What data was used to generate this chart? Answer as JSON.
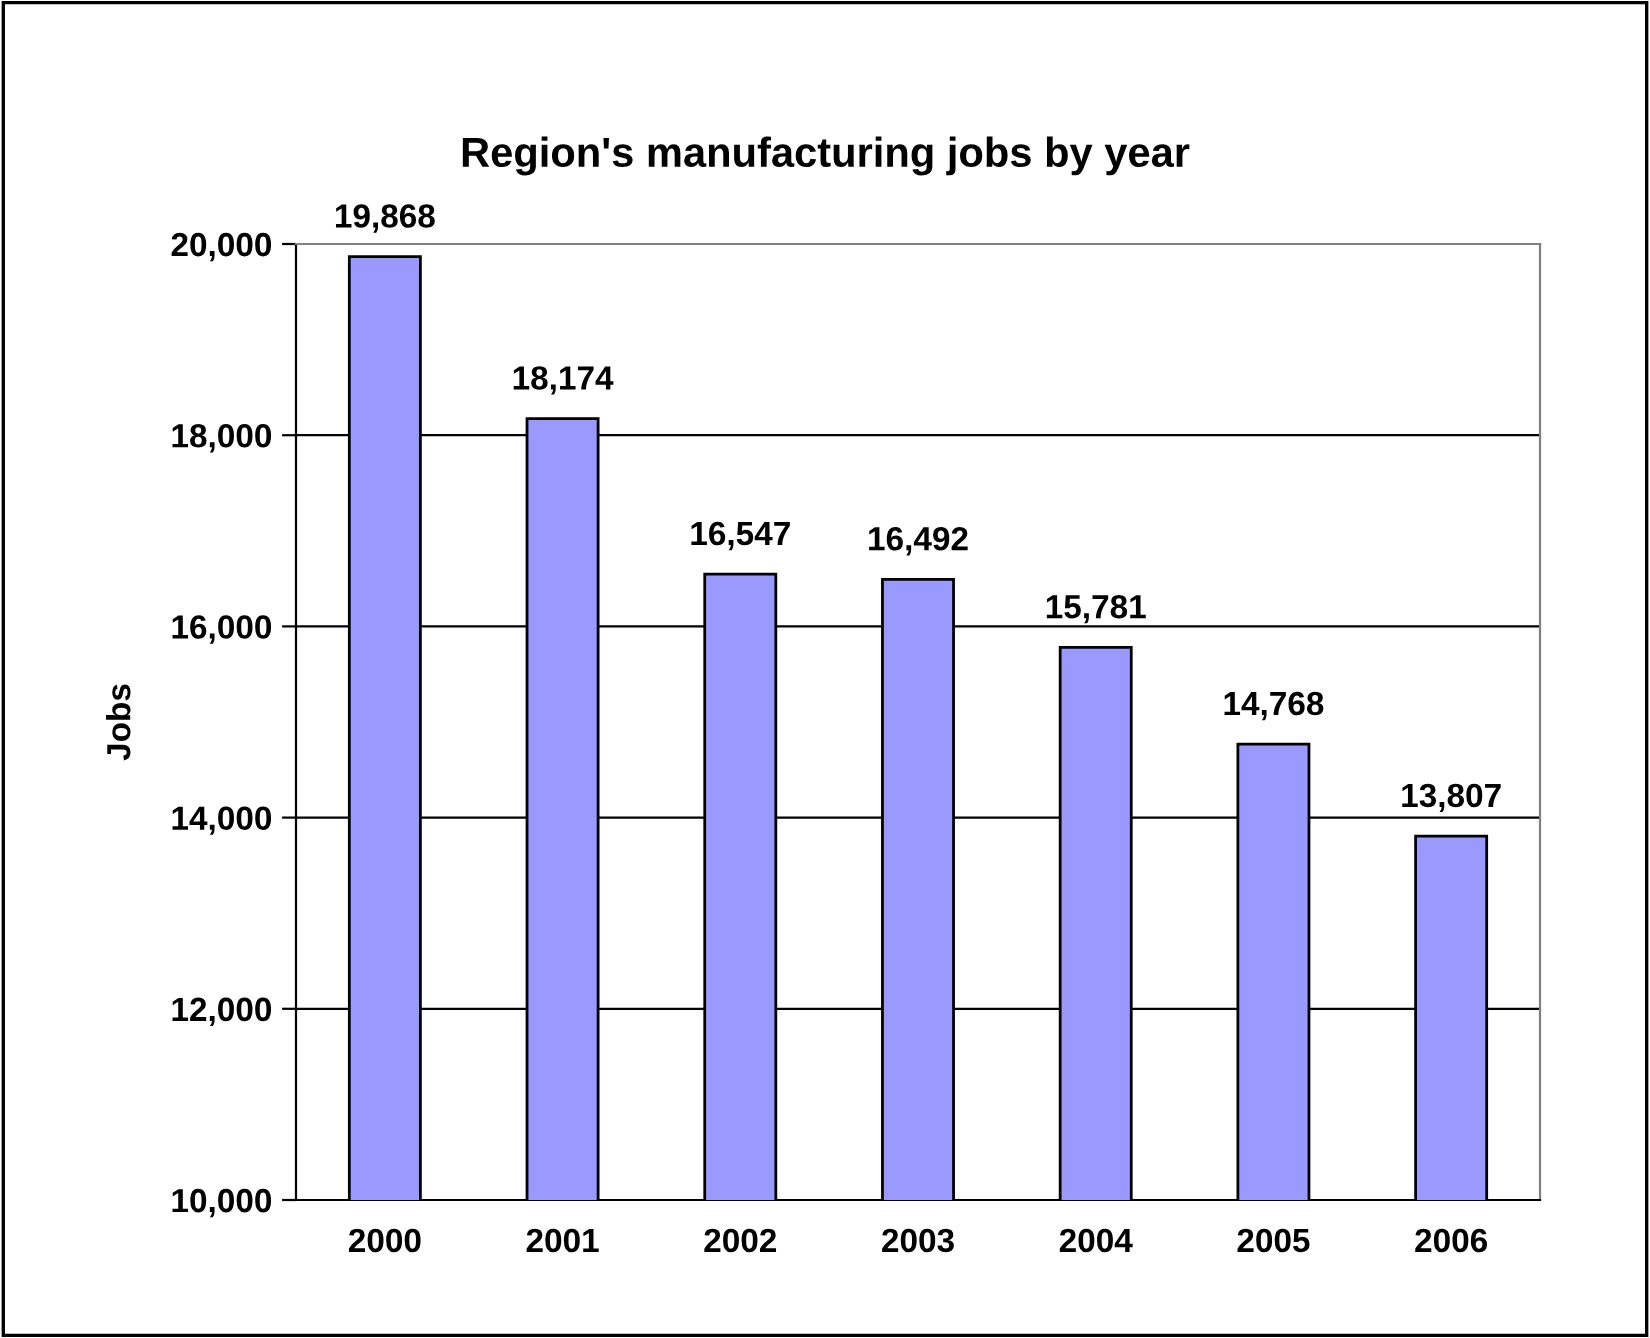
{
  "chart_data": {
    "type": "bar",
    "title": "Region's manufacturing jobs by year",
    "ylabel": "Jobs",
    "categories": [
      "2000",
      "2001",
      "2002",
      "2003",
      "2004",
      "2005",
      "2006"
    ],
    "values": [
      19868,
      18174,
      16547,
      16492,
      15781,
      14768,
      13807
    ],
    "value_labels": [
      "19,868",
      "18,174",
      "16,547",
      "16,492",
      "15,781",
      "14,768",
      "13,807"
    ],
    "color": "#9999ff",
    "ylim": [
      10000,
      20000
    ],
    "yticks": [
      {
        "value": 10000,
        "label": "10,000"
      },
      {
        "value": 12000,
        "label": "12,000"
      },
      {
        "value": 14000,
        "label": "14,000"
      },
      {
        "value": 16000,
        "label": "16,000"
      },
      {
        "value": 18000,
        "label": "18,000"
      },
      {
        "value": 20000,
        "label": "20,000"
      }
    ],
    "grid": "y",
    "legend": false
  }
}
